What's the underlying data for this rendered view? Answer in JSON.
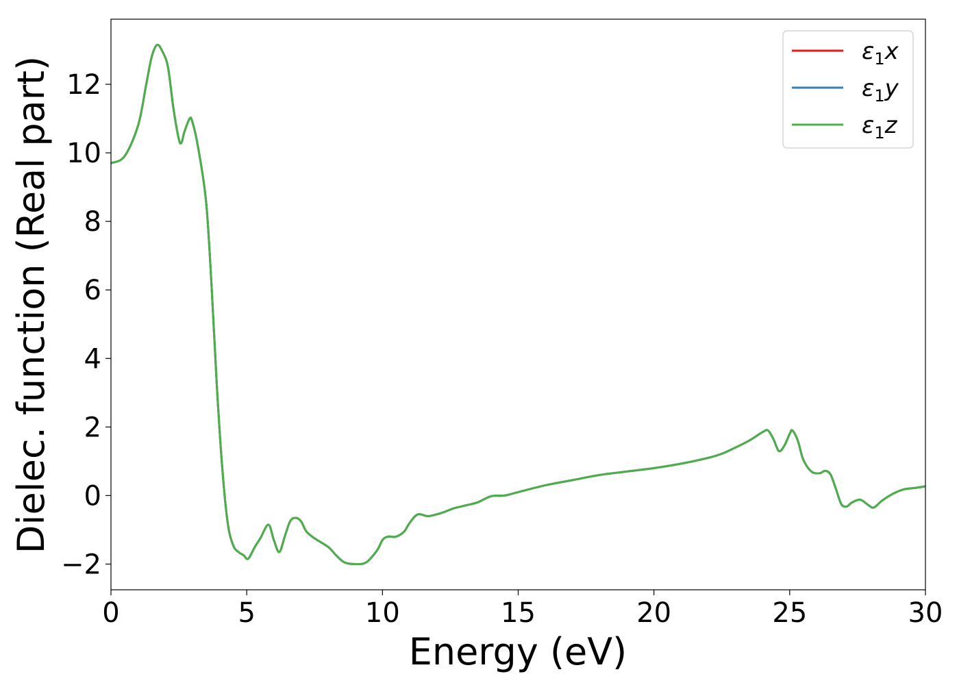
{
  "chart_data": {
    "type": "line",
    "title": "",
    "xlabel": "Energy (eV)",
    "ylabel": "Dielec. function (Real part)",
    "xlim": [
      0,
      30
    ],
    "ylim": [
      -2.75,
      13.9
    ],
    "xticks": [
      0,
      5,
      10,
      15,
      20,
      25,
      30
    ],
    "xtick_labels": [
      "0",
      "5",
      "10",
      "15",
      "20",
      "25",
      "30"
    ],
    "yticks": [
      -2,
      0,
      2,
      4,
      6,
      8,
      10,
      12
    ],
    "ytick_labels": [
      "−2",
      "0",
      "2",
      "4",
      "6",
      "8",
      "10",
      "12"
    ],
    "grid": false,
    "legend_position": "top-right",
    "legend_labels": [
      {
        "base": "ε",
        "sub": "1",
        "suffix": "x"
      },
      {
        "base": "ε",
        "sub": "1",
        "suffix": "y"
      },
      {
        "base": "ε",
        "sub": "1",
        "suffix": "z"
      }
    ],
    "x": [
      0,
      0.5,
      1.0,
      1.3,
      1.5,
      1.7,
      1.9,
      2.1,
      2.3,
      2.5,
      2.6,
      2.7,
      2.9,
      3.0,
      3.2,
      3.5,
      3.7,
      3.9,
      4.1,
      4.3,
      4.5,
      4.7,
      4.9,
      5.0,
      5.1,
      5.3,
      5.5,
      5.8,
      6.0,
      6.2,
      6.4,
      6.6,
      6.8,
      7.0,
      7.2,
      7.5,
      8.0,
      8.3,
      8.6,
      9.0,
      9.4,
      9.8,
      10.0,
      10.2,
      10.5,
      10.8,
      11.0,
      11.3,
      11.7,
      12.2,
      12.6,
      13.0,
      13.5,
      14.0,
      14.5,
      15.0,
      16.0,
      17.0,
      18.0,
      19.0,
      20.0,
      21.0,
      22.0,
      22.5,
      23.0,
      23.5,
      24.0,
      24.2,
      24.4,
      24.6,
      24.8,
      25.0,
      25.1,
      25.3,
      25.5,
      25.8,
      26.1,
      26.3,
      26.5,
      26.7,
      26.9,
      27.1,
      27.3,
      27.6,
      27.9,
      28.1,
      28.4,
      28.8,
      29.2,
      29.6,
      30.0
    ],
    "series": [
      {
        "name": "ε₁x",
        "color": "#e41a1c",
        "values": [
          9.7,
          9.9,
          10.8,
          12.0,
          12.8,
          13.15,
          12.95,
          12.5,
          11.3,
          10.4,
          10.3,
          10.6,
          11.0,
          10.9,
          10.2,
          8.6,
          6.2,
          3.2,
          0.8,
          -0.8,
          -1.45,
          -1.65,
          -1.75,
          -1.85,
          -1.8,
          -1.5,
          -1.25,
          -0.85,
          -1.3,
          -1.65,
          -1.2,
          -0.75,
          -0.65,
          -0.75,
          -1.05,
          -1.25,
          -1.5,
          -1.75,
          -1.95,
          -2.0,
          -1.95,
          -1.6,
          -1.3,
          -1.2,
          -1.2,
          -1.05,
          -0.8,
          -0.55,
          -0.6,
          -0.5,
          -0.38,
          -0.3,
          -0.2,
          -0.02,
          0.0,
          0.1,
          0.3,
          0.45,
          0.6,
          0.7,
          0.8,
          0.93,
          1.1,
          1.22,
          1.4,
          1.6,
          1.85,
          1.9,
          1.65,
          1.3,
          1.45,
          1.8,
          1.9,
          1.6,
          1.05,
          0.7,
          0.65,
          0.72,
          0.62,
          0.2,
          -0.25,
          -0.32,
          -0.2,
          -0.12,
          -0.28,
          -0.35,
          -0.15,
          0.05,
          0.18,
          0.22,
          0.27
        ]
      },
      {
        "name": "ε₁y",
        "color": "#377eb8",
        "values": [
          9.7,
          9.9,
          10.8,
          12.0,
          12.8,
          13.15,
          12.95,
          12.5,
          11.3,
          10.4,
          10.3,
          10.6,
          11.0,
          10.9,
          10.2,
          8.6,
          6.2,
          3.2,
          0.8,
          -0.8,
          -1.45,
          -1.65,
          -1.75,
          -1.85,
          -1.8,
          -1.5,
          -1.25,
          -0.85,
          -1.3,
          -1.65,
          -1.2,
          -0.75,
          -0.65,
          -0.75,
          -1.05,
          -1.25,
          -1.5,
          -1.75,
          -1.95,
          -2.0,
          -1.95,
          -1.6,
          -1.3,
          -1.2,
          -1.2,
          -1.05,
          -0.8,
          -0.55,
          -0.6,
          -0.5,
          -0.38,
          -0.3,
          -0.2,
          -0.02,
          0.0,
          0.1,
          0.3,
          0.45,
          0.6,
          0.7,
          0.8,
          0.93,
          1.1,
          1.22,
          1.4,
          1.6,
          1.85,
          1.9,
          1.65,
          1.3,
          1.45,
          1.8,
          1.9,
          1.6,
          1.05,
          0.7,
          0.65,
          0.72,
          0.62,
          0.2,
          -0.25,
          -0.32,
          -0.2,
          -0.12,
          -0.28,
          -0.35,
          -0.15,
          0.05,
          0.18,
          0.22,
          0.27
        ]
      },
      {
        "name": "ε₁z",
        "color": "#4daf4a",
        "values": [
          9.7,
          9.9,
          10.8,
          12.0,
          12.8,
          13.15,
          12.95,
          12.5,
          11.3,
          10.4,
          10.3,
          10.6,
          11.0,
          10.9,
          10.2,
          8.6,
          6.2,
          3.2,
          0.8,
          -0.8,
          -1.45,
          -1.65,
          -1.75,
          -1.85,
          -1.8,
          -1.5,
          -1.25,
          -0.85,
          -1.3,
          -1.65,
          -1.2,
          -0.75,
          -0.65,
          -0.75,
          -1.05,
          -1.25,
          -1.5,
          -1.75,
          -1.95,
          -2.0,
          -1.95,
          -1.6,
          -1.3,
          -1.2,
          -1.2,
          -1.05,
          -0.8,
          -0.55,
          -0.6,
          -0.5,
          -0.38,
          -0.3,
          -0.2,
          -0.02,
          0.0,
          0.1,
          0.3,
          0.45,
          0.6,
          0.7,
          0.8,
          0.93,
          1.1,
          1.22,
          1.4,
          1.6,
          1.85,
          1.9,
          1.65,
          1.3,
          1.45,
          1.8,
          1.9,
          1.6,
          1.05,
          0.7,
          0.65,
          0.72,
          0.62,
          0.2,
          -0.25,
          -0.32,
          -0.2,
          -0.12,
          -0.28,
          -0.35,
          -0.15,
          0.05,
          0.18,
          0.22,
          0.27
        ]
      }
    ]
  }
}
